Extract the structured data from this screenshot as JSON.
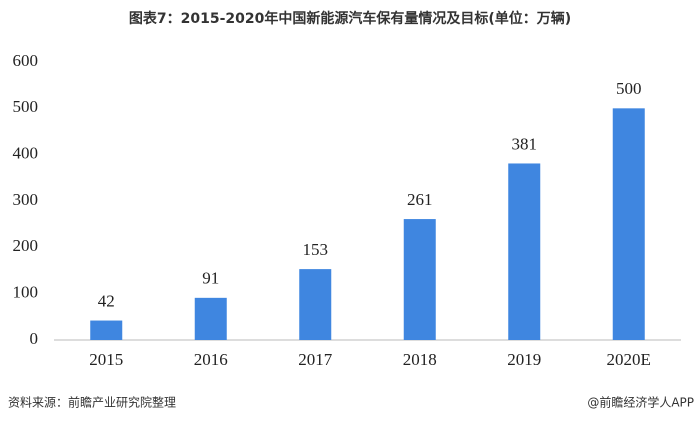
{
  "chart_data": {
    "type": "bar",
    "title": "图表7：2015-2020年中国新能源汽车保有量情况及目标(单位：万辆)",
    "categories": [
      "2015",
      "2016",
      "2017",
      "2018",
      "2019",
      "2020E"
    ],
    "values": [
      42,
      91,
      153,
      261,
      381,
      500
    ],
    "color": "#3f86e0",
    "ylim": [
      0,
      600
    ],
    "yticks": [
      0,
      100,
      200,
      300,
      400,
      500,
      600
    ],
    "grid": false,
    "source": "资料来源：前瞻产业研究院整理",
    "credit": "@前瞻经济学人APP"
  }
}
